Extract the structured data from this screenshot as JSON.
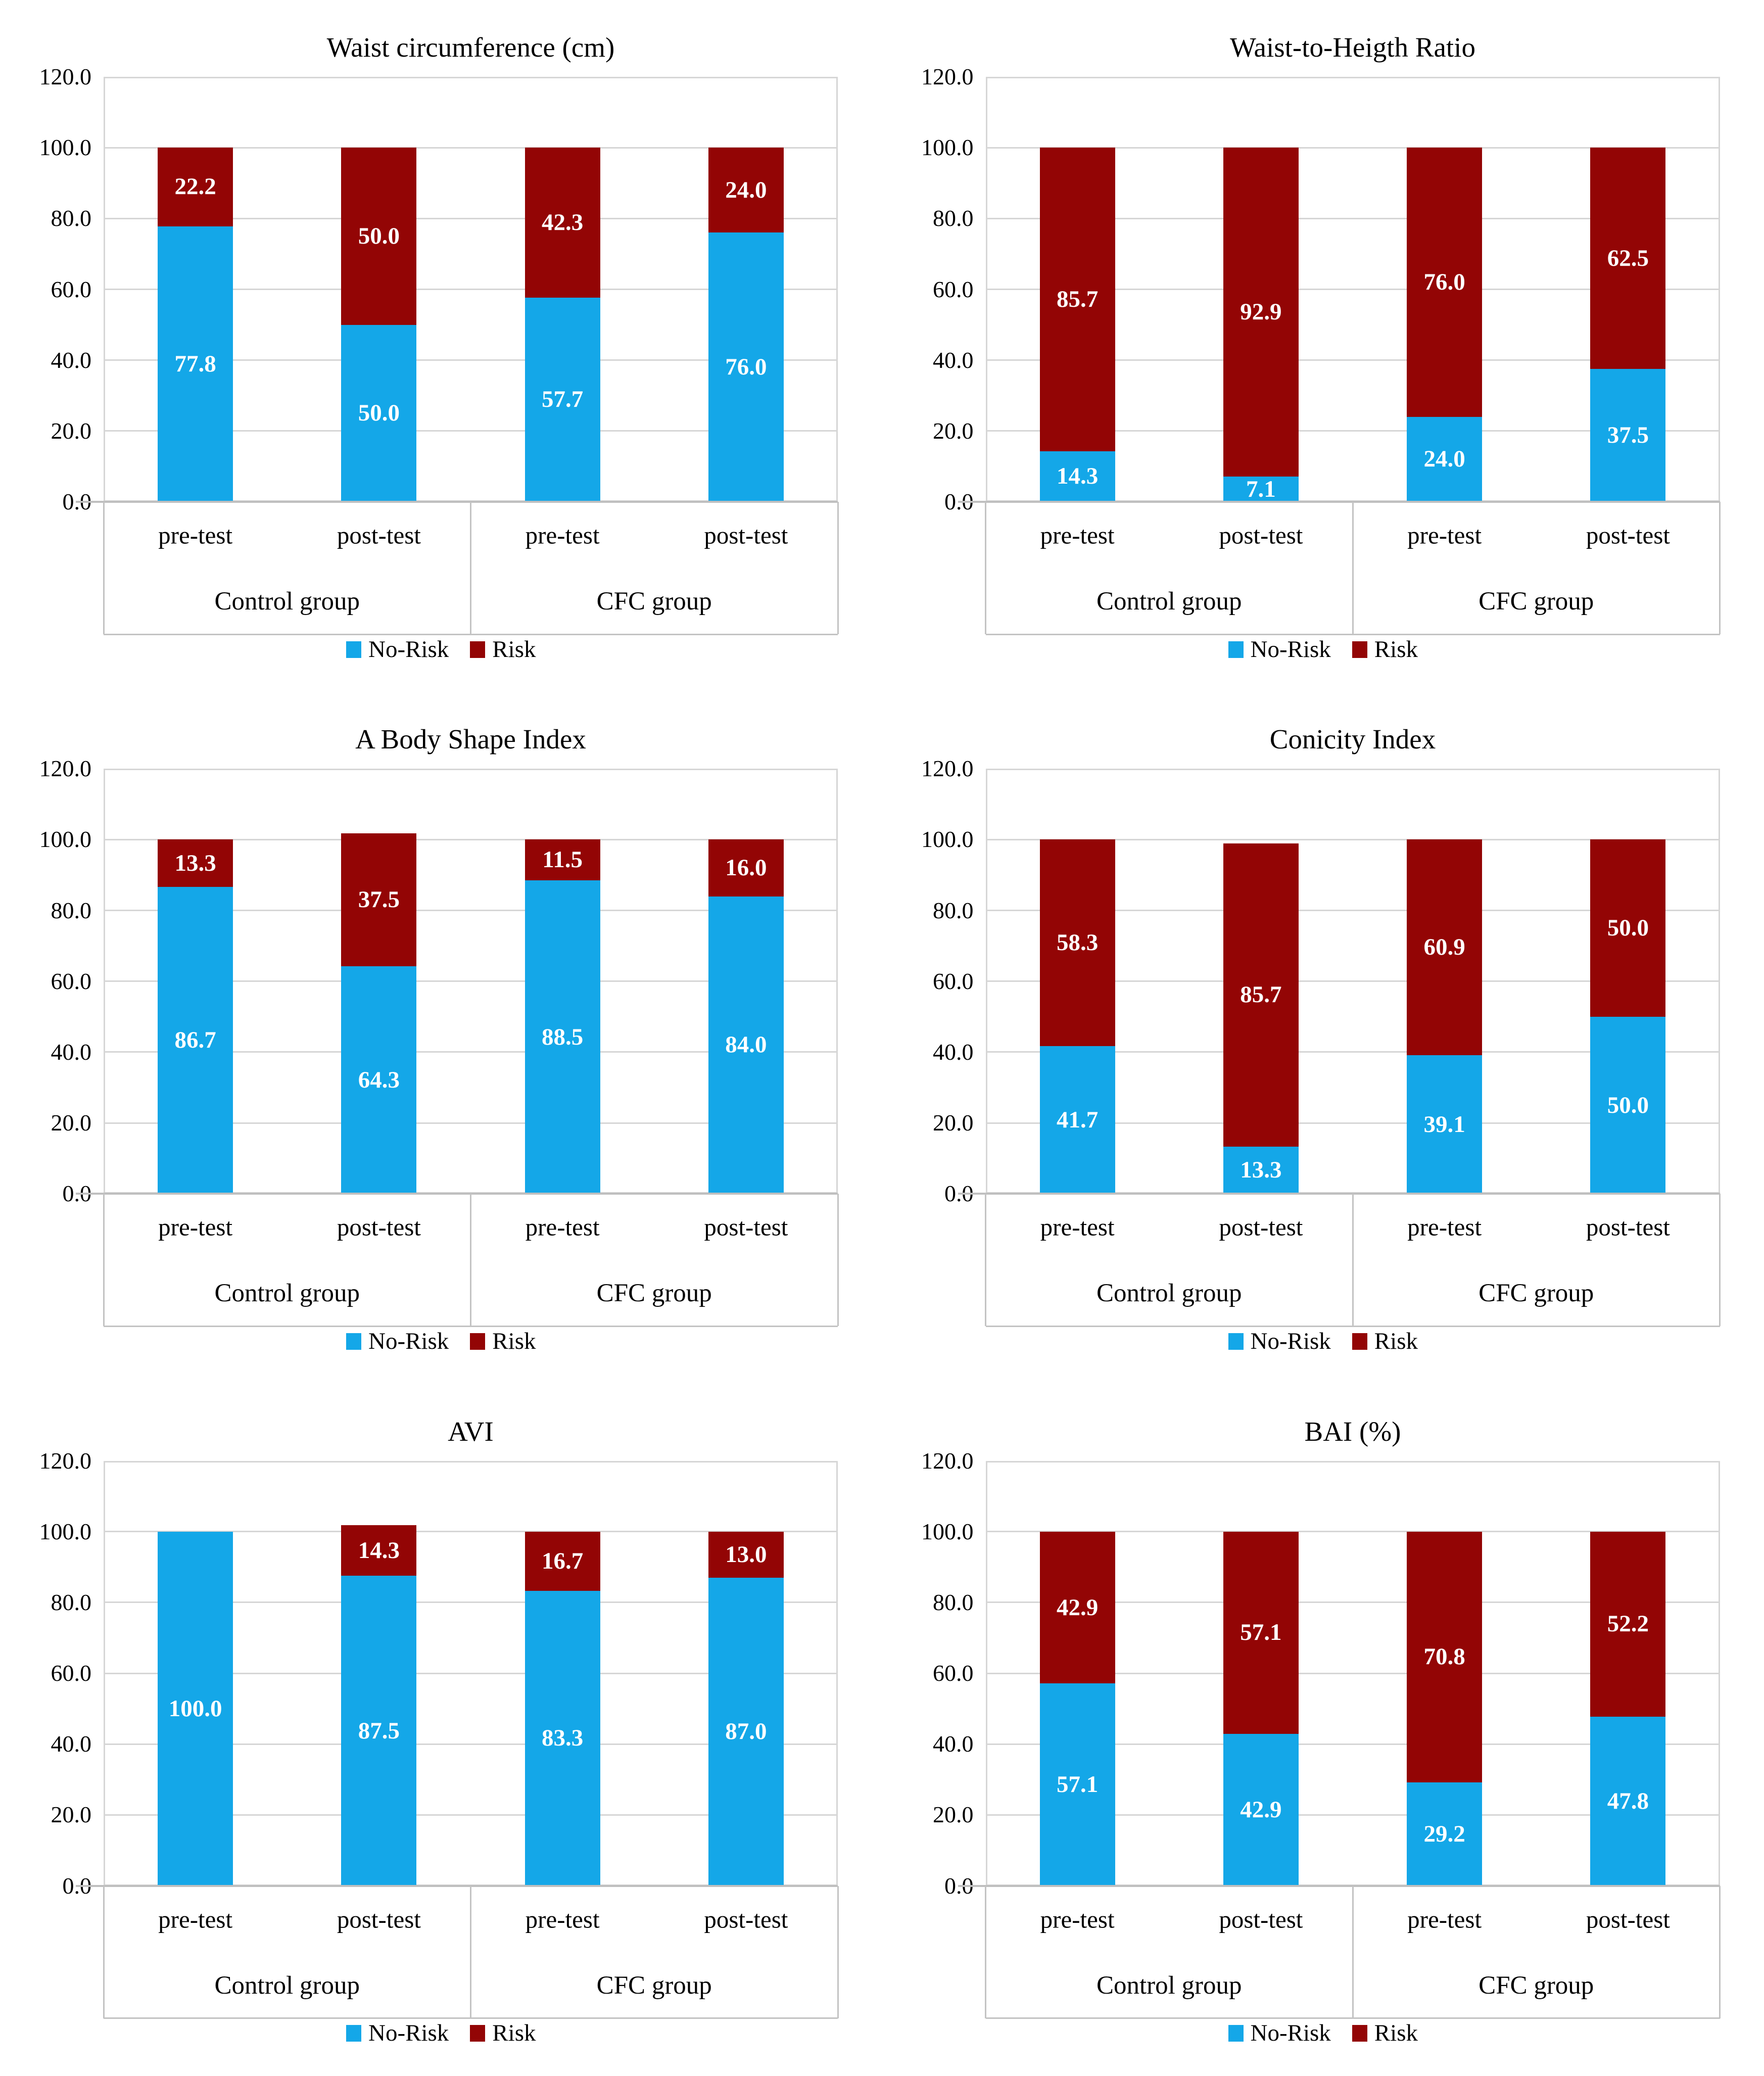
{
  "figure": {
    "background": "#FFFFFF"
  },
  "style": {
    "no_risk_color": "#14A7E8",
    "risk_color": "#930505",
    "gridline_color": "#D6D6D6",
    "axis_line_color": "#BFBFBF",
    "table_line_color": "#C3C3C3",
    "value_label_color": "#FFFFFF",
    "text_color": "#000000"
  },
  "legend": [
    {
      "label": "No-Risk",
      "series": "no_risk"
    },
    {
      "label": "Risk",
      "series": "risk"
    }
  ],
  "y_axis": {
    "min": 0,
    "max": 120,
    "step": 20,
    "tick_labels": [
      "0.0",
      "20.0",
      "40.0",
      "60.0",
      "80.0",
      "100.0",
      "120.0"
    ]
  },
  "x_axis": {
    "categories": [
      "pre-test",
      "post-test",
      "pre-test",
      "post-test"
    ],
    "groups": [
      "Control group",
      "CFC group"
    ]
  },
  "chart_data": [
    {
      "type": "bar",
      "stacked": true,
      "title": "Waist circumference (cm)",
      "ylim": [
        0,
        120
      ],
      "grid": true,
      "legend_position": "bottom",
      "categories": [
        "pre-test",
        "post-test",
        "pre-test",
        "post-test"
      ],
      "groups": [
        "Control group",
        "CFC group"
      ],
      "series": [
        {
          "name": "No-Risk",
          "color_key": "no_risk",
          "values": [
            77.8,
            50.0,
            57.7,
            76.0
          ]
        },
        {
          "name": "Risk",
          "color_key": "risk",
          "values": [
            22.2,
            50.0,
            42.3,
            24.0
          ]
        }
      ]
    },
    {
      "type": "bar",
      "stacked": true,
      "title": "Waist-to-Heigth Ratio",
      "ylim": [
        0,
        120
      ],
      "grid": true,
      "legend_position": "bottom",
      "categories": [
        "pre-test",
        "post-test",
        "pre-test",
        "post-test"
      ],
      "groups": [
        "Control group",
        "CFC group"
      ],
      "series": [
        {
          "name": "No-Risk",
          "color_key": "no_risk",
          "values": [
            14.3,
            7.1,
            24.0,
            37.5
          ]
        },
        {
          "name": "Risk",
          "color_key": "risk",
          "values": [
            85.7,
            92.9,
            76.0,
            62.5
          ]
        }
      ]
    },
    {
      "type": "bar",
      "stacked": true,
      "title": "A Body Shape Index",
      "ylim": [
        0,
        120
      ],
      "grid": true,
      "legend_position": "bottom",
      "categories": [
        "pre-test",
        "post-test",
        "pre-test",
        "post-test"
      ],
      "groups": [
        "Control group",
        "CFC group"
      ],
      "series": [
        {
          "name": "No-Risk",
          "color_key": "no_risk",
          "values": [
            86.7,
            64.3,
            88.5,
            84.0
          ]
        },
        {
          "name": "Risk",
          "color_key": "risk",
          "values": [
            13.3,
            37.5,
            11.5,
            16.0
          ]
        }
      ]
    },
    {
      "type": "bar",
      "stacked": true,
      "title": "Conicity Index",
      "ylim": [
        0,
        120
      ],
      "grid": true,
      "legend_position": "bottom",
      "categories": [
        "pre-test",
        "post-test",
        "pre-test",
        "post-test"
      ],
      "groups": [
        "Control group",
        "CFC group"
      ],
      "series": [
        {
          "name": "No-Risk",
          "color_key": "no_risk",
          "values": [
            41.7,
            13.3,
            39.1,
            50.0
          ]
        },
        {
          "name": "Risk",
          "color_key": "risk",
          "values": [
            58.3,
            85.7,
            60.9,
            50.0
          ]
        }
      ]
    },
    {
      "type": "bar",
      "stacked": true,
      "title": "AVI",
      "ylim": [
        0,
        120
      ],
      "grid": true,
      "legend_position": "bottom",
      "categories": [
        "pre-test",
        "post-test",
        "pre-test",
        "post-test"
      ],
      "groups": [
        "Control group",
        "CFC group"
      ],
      "series": [
        {
          "name": "No-Risk",
          "color_key": "no_risk",
          "values": [
            100.0,
            87.5,
            83.3,
            87.0
          ]
        },
        {
          "name": "Risk",
          "color_key": "risk",
          "values": [
            0.0,
            14.3,
            16.7,
            13.0
          ]
        }
      ]
    },
    {
      "type": "bar",
      "stacked": true,
      "title": "BAI (%)",
      "ylim": [
        0,
        120
      ],
      "grid": true,
      "legend_position": "bottom",
      "categories": [
        "pre-test",
        "post-test",
        "pre-test",
        "post-test"
      ],
      "groups": [
        "Control group",
        "CFC group"
      ],
      "series": [
        {
          "name": "No-Risk",
          "color_key": "no_risk",
          "values": [
            57.1,
            42.9,
            29.2,
            47.8
          ]
        },
        {
          "name": "Risk",
          "color_key": "risk",
          "values": [
            42.9,
            57.1,
            70.8,
            52.2
          ]
        }
      ]
    }
  ]
}
